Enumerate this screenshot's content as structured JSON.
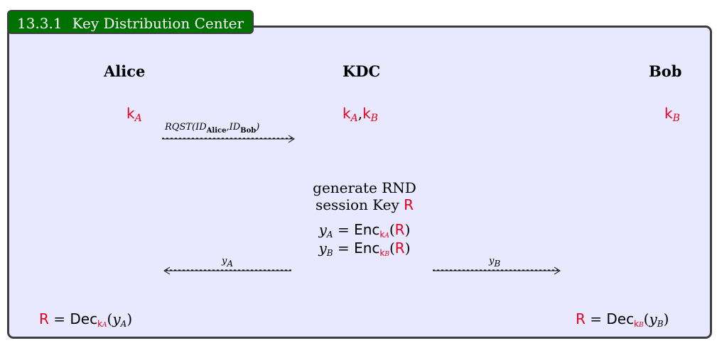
{
  "section": {
    "number": "13.3.1",
    "title": "Key Distribution Center"
  },
  "parties": {
    "alice": "Alice",
    "kdc": "KDC",
    "bob": "Bob"
  },
  "keys": {
    "alice": {
      "k": "k",
      "sub": "A"
    },
    "kdc": {
      "k1": "k",
      "sub1": "A",
      "sep": ",",
      "k2": "k",
      "sub2": "B"
    },
    "bob": {
      "k": "k",
      "sub": "B"
    }
  },
  "messages": {
    "request": {
      "prefix": "RQST(ID",
      "sub1": "Alice",
      "mid": ",ID",
      "sub2": "Bob",
      "suffix": ")"
    },
    "to_alice": {
      "var": "y",
      "sub": "A"
    },
    "to_bob": {
      "var": "y",
      "sub": "B"
    }
  },
  "kdc_steps": {
    "line1": "generate RND",
    "line2_text": "session Key",
    "line2_key": "R",
    "yA": {
      "var": "y",
      "sub": "A",
      "eq": " = ",
      "enc": "Enc",
      "k": "k",
      "ksub": "A",
      "open": "(",
      "R": "R",
      "close": ")"
    },
    "yB": {
      "var": "y",
      "sub": "B",
      "eq": " = ",
      "enc": "Enc",
      "k": "k",
      "ksub": "B",
      "open": "(",
      "R": "R",
      "close": ")"
    }
  },
  "decryption": {
    "alice": {
      "R": "R",
      "eq": " = ",
      "dec": "Dec",
      "k": "k",
      "ksub": "A",
      "open": "(",
      "var": "y",
      "vsub": "A",
      "close": ")"
    },
    "bob": {
      "R": "R",
      "eq": " = ",
      "dec": "Dec",
      "k": "k",
      "ksub": "B",
      "open": "(",
      "var": "y",
      "vsub": "B",
      "close": ")"
    }
  },
  "colors": {
    "title_bg": "#007000",
    "box_bg": "#e8e8ff",
    "key_red": "#e8001c",
    "border": "#3d3d3d"
  }
}
